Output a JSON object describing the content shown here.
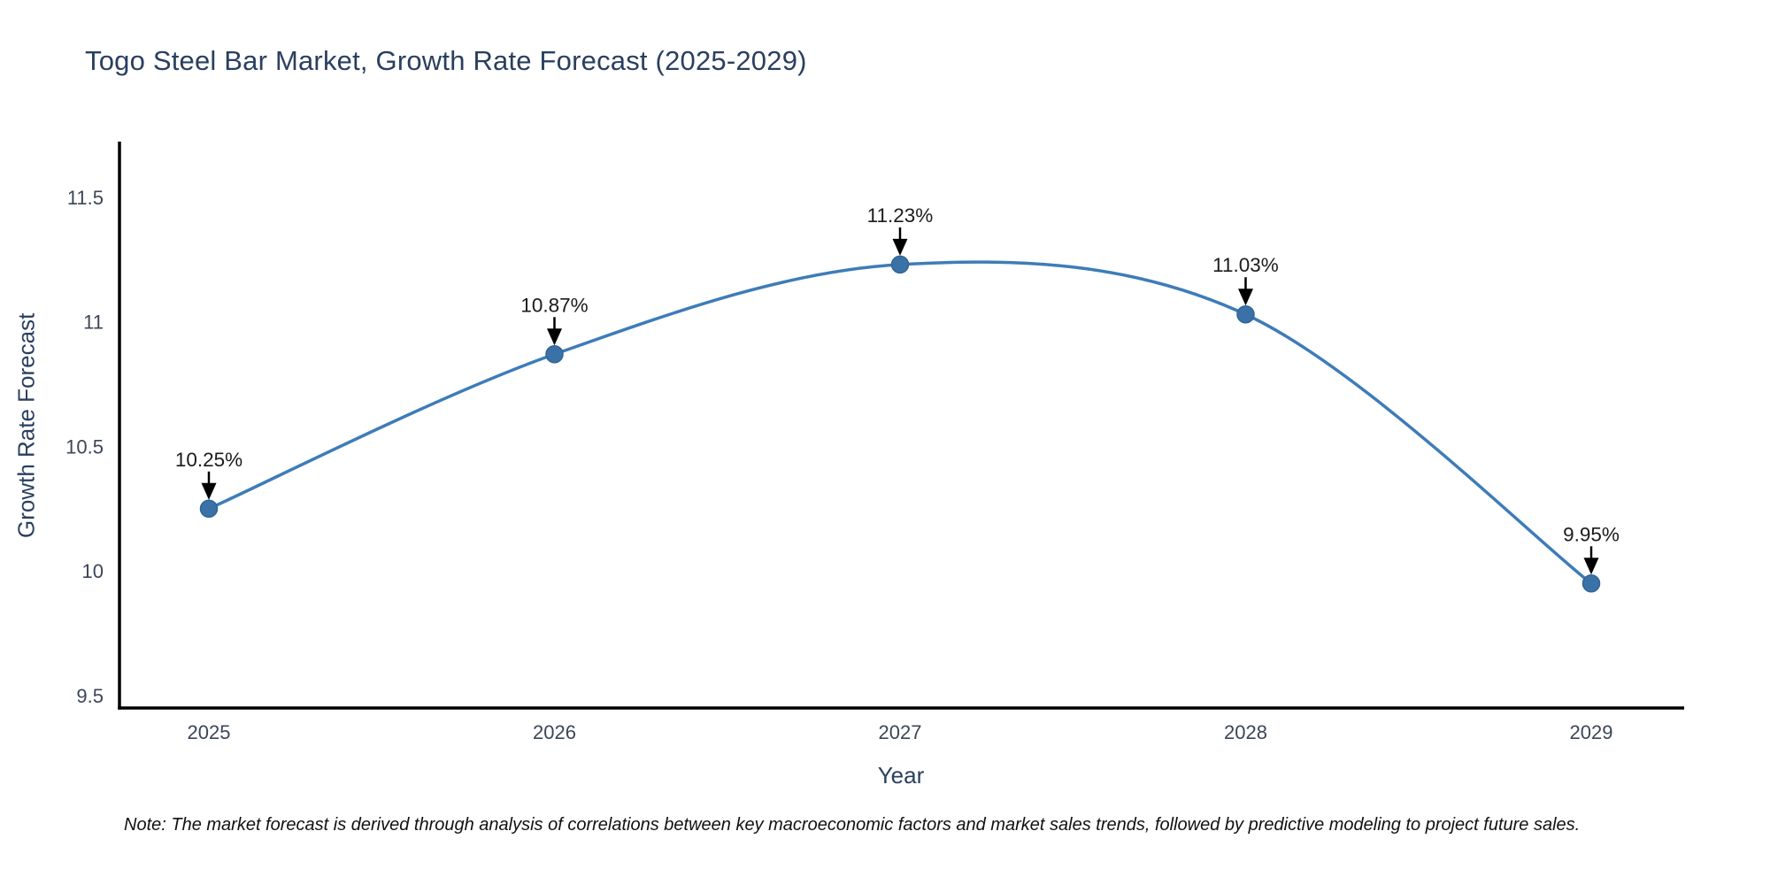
{
  "title": "Togo Steel Bar Market, Growth Rate Forecast (2025-2029)",
  "note": "Note: The market forecast is derived through analysis of correlations between key macroeconomic factors and market sales trends, followed by predictive modeling to project future sales.",
  "chart_data": {
    "type": "line",
    "categories": [
      "2025",
      "2026",
      "2027",
      "2028",
      "2029"
    ],
    "series": [
      {
        "name": "Growth Rate Forecast",
        "values": [
          10.25,
          10.87,
          11.23,
          11.03,
          9.95
        ]
      }
    ],
    "point_labels": [
      "10.25%",
      "10.87%",
      "11.23%",
      "11.03%",
      "9.95%"
    ],
    "title": "Togo Steel Bar Market, Growth Rate Forecast (2025-2029)",
    "xlabel": "Year",
    "ylabel": "Growth Rate Forecast",
    "y_ticks": [
      9.5,
      10,
      10.5,
      11,
      11.5
    ],
    "ylim": [
      9.45,
      11.72
    ],
    "line_shape": "spline",
    "grid": false,
    "legend_shown": false,
    "annotation_style": "down-arrow",
    "colors": {
      "line": "#3e7cb8",
      "marker": "#3a72a8",
      "marker_edge": "#2f6496",
      "axis": "#000000",
      "title_text": "#2a3f5f",
      "tick_text": "#3b4657",
      "annotation_text": "#1a1a1a",
      "arrow": "#000000",
      "background": "#ffffff"
    }
  }
}
